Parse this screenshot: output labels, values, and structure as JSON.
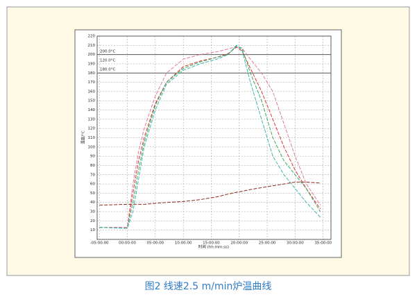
{
  "chart_data": {
    "type": "line",
    "x": [
      -5,
      0,
      1,
      2,
      3,
      5,
      7,
      10,
      13,
      16,
      18,
      19.5,
      20.5,
      22,
      24,
      26,
      28,
      30,
      32,
      34.5
    ],
    "series": [
      {
        "color": "#e03030",
        "values": [
          13,
          13,
          50,
          85,
          110,
          147,
          170,
          187,
          193,
          197,
          201,
          208,
          204,
          185,
          160,
          130,
          100,
          75,
          55,
          33
        ]
      },
      {
        "color": "#e07aa0",
        "values": [
          13,
          13,
          60,
          95,
          120,
          155,
          180,
          195,
          200,
          203,
          206,
          209,
          207,
          195,
          180,
          160,
          125,
          90,
          60,
          37
        ]
      },
      {
        "color": "#3aaa5a",
        "values": [
          13,
          12,
          40,
          75,
          105,
          145,
          170,
          185,
          192,
          197,
          200,
          209,
          207,
          180,
          150,
          110,
          85,
          70,
          55,
          30
        ]
      },
      {
        "color": "#3ab5b0",
        "values": [
          13,
          12,
          30,
          65,
          100,
          140,
          168,
          183,
          190,
          195,
          200,
          210,
          205,
          170,
          130,
          90,
          70,
          55,
          40,
          24
        ]
      },
      {
        "color": "#8b2a1a",
        "values": [
          37,
          38,
          38,
          38,
          38,
          39,
          40,
          41,
          43,
          46,
          49,
          51,
          52,
          54,
          56,
          58,
          60,
          62,
          62,
          61
        ]
      }
    ],
    "xlim": [
      -5.4,
      36.4
    ],
    "xticks": [
      {
        "value": -5,
        "label": "-05:00:00"
      },
      {
        "value": 0,
        "label": "00:00:00"
      },
      {
        "value": 5,
        "label": "05:00:00"
      },
      {
        "value": 10,
        "label": "10:00:00"
      },
      {
        "value": 15,
        "label": "15:00:00"
      },
      {
        "value": 20,
        "label": "20:00:00"
      },
      {
        "value": 25,
        "label": "25:00:00"
      },
      {
        "value": 30,
        "label": "30:00:00"
      },
      {
        "value": 35,
        "label": "35:00:00"
      }
    ],
    "ylim": [
      0,
      220
    ],
    "yticks": [
      10,
      20,
      30,
      40,
      50,
      60,
      70,
      80,
      90,
      100,
      110,
      120,
      130,
      140,
      150,
      160,
      170,
      180,
      190,
      200,
      210,
      220
    ],
    "grid": true,
    "x_label": "时间 (hh:mm:ss)",
    "y_label": "温度/°C",
    "reference_lines": [
      200,
      180
    ],
    "annotations": [
      "200.0°C",
      "120.0°C",
      "180.0°C"
    ],
    "caption": "图2 线速2.5 m/min炉温曲线"
  }
}
